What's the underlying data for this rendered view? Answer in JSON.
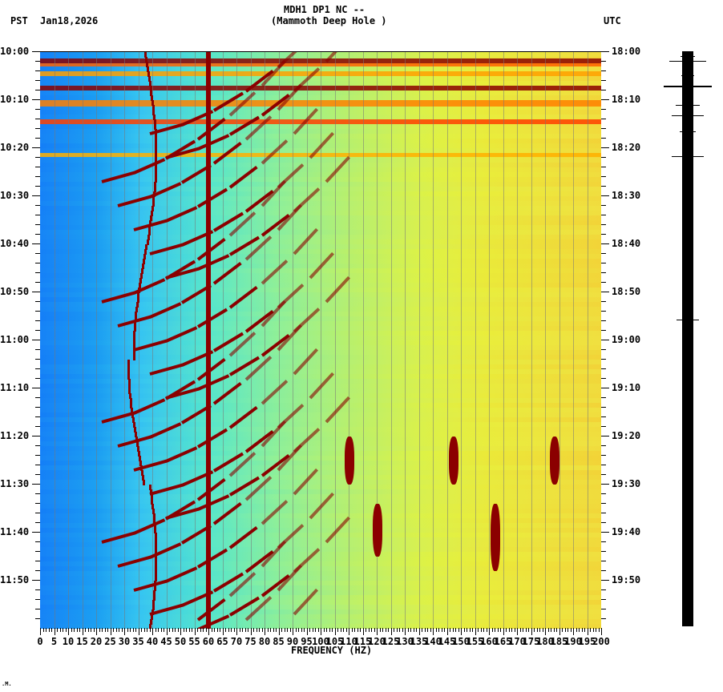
{
  "header": {
    "station": "MDH1 DP1 NC --",
    "location": "(Mammoth Deep Hole )",
    "left_tz": "PST",
    "date": "Jan18,2026",
    "right_tz": "UTC"
  },
  "footer_mark": ".M.",
  "chart_data": {
    "type": "heatmap",
    "title": "MDH1 DP1 NC -- (Mammoth Deep Hole )",
    "subtitle": "PST Jan18,2026 / UTC",
    "xlabel": "FREQUENCY (HZ)",
    "ylabel_left": "PST",
    "ylabel_right": "UTC",
    "xlim": [
      0,
      200
    ],
    "x_ticks": [
      0,
      5,
      10,
      15,
      20,
      25,
      30,
      35,
      40,
      45,
      50,
      55,
      60,
      65,
      70,
      75,
      80,
      85,
      90,
      95,
      100,
      105,
      110,
      115,
      120,
      125,
      130,
      135,
      140,
      145,
      150,
      155,
      160,
      165,
      170,
      175,
      180,
      185,
      190,
      195,
      200
    ],
    "y_ticks_left": [
      "10:00",
      "10:10",
      "10:20",
      "10:30",
      "10:40",
      "10:50",
      "11:00",
      "11:10",
      "11:20",
      "11:30",
      "11:40",
      "11:50"
    ],
    "y_ticks_right": [
      "18:00",
      "18:10",
      "18:20",
      "18:30",
      "18:40",
      "18:50",
      "19:00",
      "19:10",
      "19:20",
      "19:30",
      "19:40",
      "19:50"
    ],
    "time_range_pst": [
      "10:00",
      "12:00"
    ],
    "colormap": [
      "#0050ff",
      "#00c8ff",
      "#60ffa0",
      "#ffff00",
      "#ff8000",
      "#ff0000",
      "#8b0000"
    ],
    "features": {
      "constant_line_hz": 60,
      "noise_floor_low_freq": "blue (low power) below ~30 Hz",
      "high_freq": "yellow/orange (higher power) above ~100 Hz",
      "broadband_bursts_pst": [
        "10:02",
        "10:07",
        "10:11",
        "10:14",
        "10:21"
      ],
      "gliding_tones": "repeating upward-sweeping arcs every ~5 min from ~20-45 Hz to ~130 Hz",
      "narrowband_events": [
        {
          "freq_hz": 110,
          "time_pst": "11:20-11:30"
        },
        {
          "freq_hz": 147,
          "time_pst": "11:20-11:30"
        },
        {
          "freq_hz": 183,
          "time_pst": "11:20-11:30"
        },
        {
          "freq_hz": 120,
          "time_pst": "11:34-11:45"
        },
        {
          "freq_hz": 162,
          "time_pst": "11:34-11:48"
        }
      ]
    },
    "grid": false,
    "legend": "none"
  },
  "seismogram": {
    "spikes_pst": [
      "10:02",
      "10:07",
      "10:11",
      "10:15",
      "10:22",
      "10:55"
    ]
  }
}
